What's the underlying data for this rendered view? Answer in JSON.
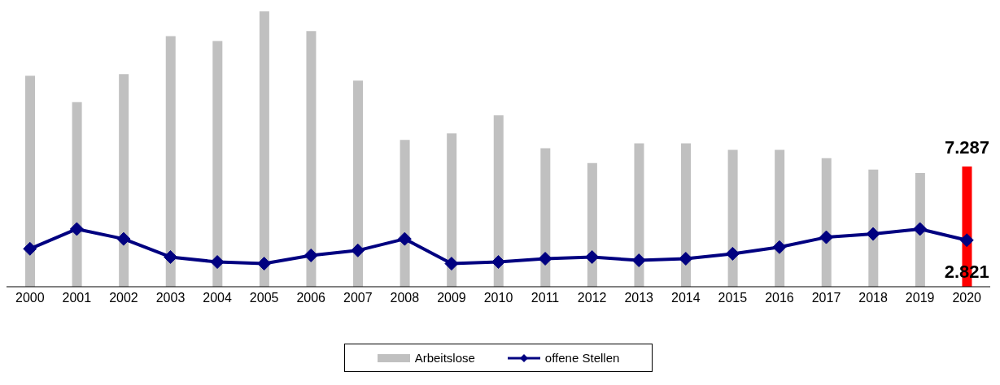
{
  "chart_data": {
    "type": "bar",
    "categories": [
      "2000",
      "2001",
      "2002",
      "2003",
      "2004",
      "2005",
      "2006",
      "2007",
      "2008",
      "2009",
      "2010",
      "2011",
      "2012",
      "2013",
      "2014",
      "2015",
      "2016",
      "2017",
      "2018",
      "2019",
      "2020"
    ],
    "series": [
      {
        "name": "Arbeitslose",
        "color": "#c0c0c0",
        "colors": [
          "#c0c0c0",
          "#c0c0c0",
          "#c0c0c0",
          "#c0c0c0",
          "#c0c0c0",
          "#c0c0c0",
          "#c0c0c0",
          "#c0c0c0",
          "#c0c0c0",
          "#c0c0c0",
          "#c0c0c0",
          "#c0c0c0",
          "#c0c0c0",
          "#c0c0c0",
          "#c0c0c0",
          "#c0c0c0",
          "#c0c0c0",
          "#c0c0c0",
          "#c0c0c0",
          "#c0c0c0",
          "#ff0000"
        ],
        "values": [
          12.8,
          11.2,
          12.9,
          15.2,
          14.9,
          16.7,
          15.5,
          12.5,
          8.9,
          9.3,
          10.4,
          8.4,
          7.5,
          8.7,
          8.7,
          8.3,
          8.3,
          7.8,
          7.1,
          6.9,
          7.287
        ],
        "value_labels": [
          null,
          null,
          null,
          null,
          null,
          null,
          null,
          null,
          null,
          null,
          null,
          null,
          null,
          null,
          null,
          null,
          null,
          null,
          null,
          null,
          "7.287"
        ]
      },
      {
        "name": "offene Stellen",
        "type": "line",
        "color": "#000080",
        "marker": "diamond",
        "values": [
          2.3,
          3.5,
          2.9,
          1.8,
          1.5,
          1.4,
          1.9,
          2.2,
          2.9,
          1.4,
          1.5,
          1.7,
          1.8,
          1.6,
          1.7,
          2.0,
          2.4,
          3.0,
          3.2,
          3.5,
          2.821
        ],
        "value_labels": [
          null,
          null,
          null,
          null,
          null,
          null,
          null,
          null,
          null,
          null,
          null,
          null,
          null,
          null,
          null,
          null,
          null,
          null,
          null,
          null,
          "2.821"
        ]
      }
    ],
    "legend": "bottom"
  }
}
